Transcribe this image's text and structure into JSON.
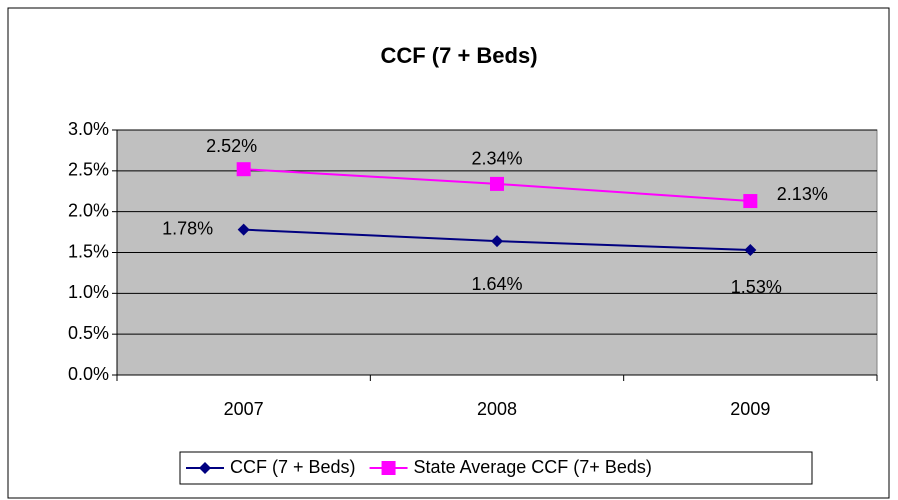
{
  "chart_data": {
    "type": "line",
    "title": "CCF (7 + Beds)",
    "categories": [
      "2007",
      "2008",
      "2009"
    ],
    "series": [
      {
        "name": "CCF (7 + Beds)",
        "color": "#000080",
        "marker": "diamond",
        "values": [
          1.78,
          1.64,
          1.53
        ],
        "value_labels": [
          "1.78%",
          "1.64%",
          "1.53%"
        ]
      },
      {
        "name": "State Average CCF (7+ Beds)",
        "color": "#ff00ff",
        "marker": "square",
        "values": [
          2.52,
          2.34,
          2.13
        ],
        "value_labels": [
          "2.52%",
          "2.34%",
          "2.13%"
        ]
      }
    ],
    "ylim": [
      0,
      3
    ],
    "yticks": [
      {
        "value": 0,
        "label": "0.0%"
      },
      {
        "value": 0.5,
        "label": "0.5%"
      },
      {
        "value": 1,
        "label": "1.0%"
      },
      {
        "value": 1.5,
        "label": "1.5%"
      },
      {
        "value": 2,
        "label": "2.0%"
      },
      {
        "value": 2.5,
        "label": "2.5%"
      },
      {
        "value": 3,
        "label": "3.0%"
      }
    ],
    "grid": true,
    "legend": "bottom"
  }
}
